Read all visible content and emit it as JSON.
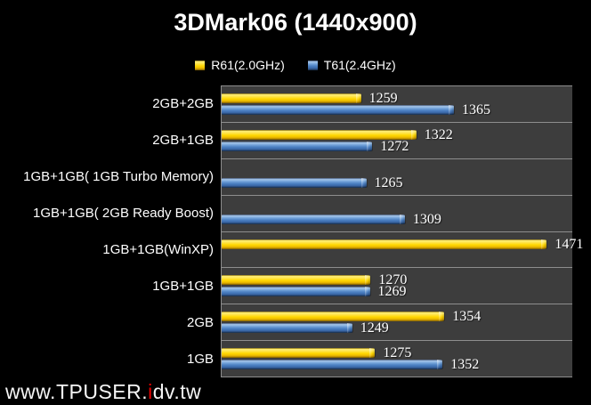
{
  "title": "3DMark06 (1440x900)",
  "legend": [
    {
      "label": "R61(2.0GHz)",
      "color": "#ffd800",
      "marker": "square"
    },
    {
      "label": "T61(2.4GHz)",
      "color": "#4d82c4",
      "marker": "square"
    }
  ],
  "watermark": {
    "prefix": "www.TPUSER.",
    "accent": "i",
    "suffix": "dv.tw",
    "accent_color": "#e60000"
  },
  "chart_data": {
    "type": "bar",
    "orientation": "horizontal",
    "title": "3DMark06 (1440x900)",
    "categories": [
      "2GB+2GB",
      "2GB+1GB",
      "1GB+1GB( 1GB Turbo Memory)",
      "1GB+1GB( 2GB Ready Boost)",
      "1GB+1GB(WinXP)",
      "1GB+1GB",
      "2GB",
      "1GB"
    ],
    "series": [
      {
        "name": "R61(2.0GHz)",
        "color": "#ffd800",
        "values": [
          1259,
          1322,
          null,
          null,
          1471,
          1270,
          1354,
          1275
        ]
      },
      {
        "name": "T61(2.4GHz)",
        "color": "#4d82c4",
        "values": [
          1365,
          1272,
          1265,
          1309,
          null,
          1269,
          1249,
          1352
        ]
      }
    ],
    "value_axis": {
      "min": 1100,
      "max": 1500,
      "visible": false
    },
    "xlabel": "",
    "ylabel": "",
    "gridlines": "category-separators-only",
    "legend_position": "top",
    "plot_background": "#3d3d3d",
    "page_background": "#000000"
  }
}
